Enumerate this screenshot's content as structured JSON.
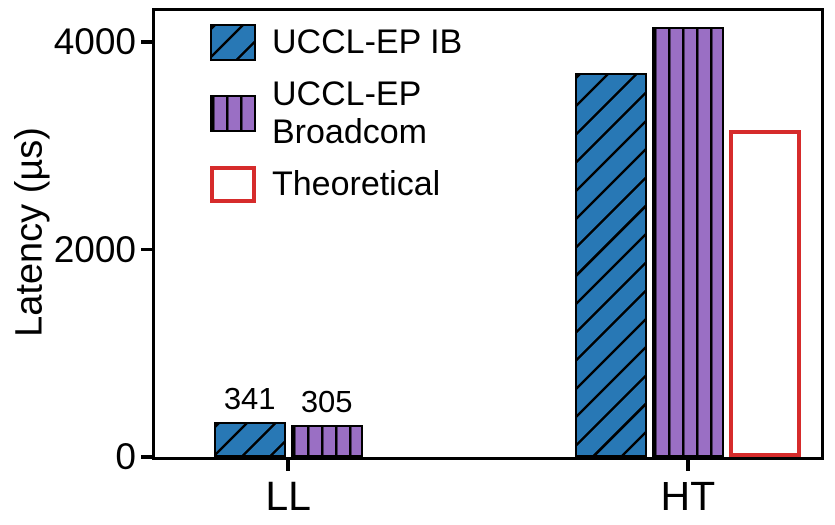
{
  "chart_data": {
    "type": "bar",
    "ylabel": "Latency (µs)",
    "xlabel": "",
    "categories": [
      "LL",
      "HT"
    ],
    "series": [
      {
        "name": "UCCL-EP IB",
        "values": [
          341,
          3700
        ],
        "labels": [
          "341",
          null
        ],
        "color": "#2878b5",
        "edge_color": null,
        "hatch": "diagonal"
      },
      {
        "name": "UCCL-EP Broadcom",
        "values": [
          305,
          4150
        ],
        "labels": [
          "305",
          null
        ],
        "color": "#9a6fc4",
        "edge_color": null,
        "hatch": "vertical"
      },
      {
        "name": "Theoretical",
        "values": [
          null,
          3150
        ],
        "labels": [
          null,
          null
        ],
        "color": "#ffffff",
        "edge_color": "#d62b2b",
        "hatch": "none"
      }
    ],
    "ylim": [
      0,
      4300
    ],
    "ytick_values": [
      0,
      2000,
      4000
    ],
    "ytick_labels": [
      "0",
      "2000",
      "4000"
    ],
    "legend_position": "upper-left",
    "grid": false,
    "colors": {
      "axis": "#000000",
      "background": "#ffffff"
    }
  }
}
